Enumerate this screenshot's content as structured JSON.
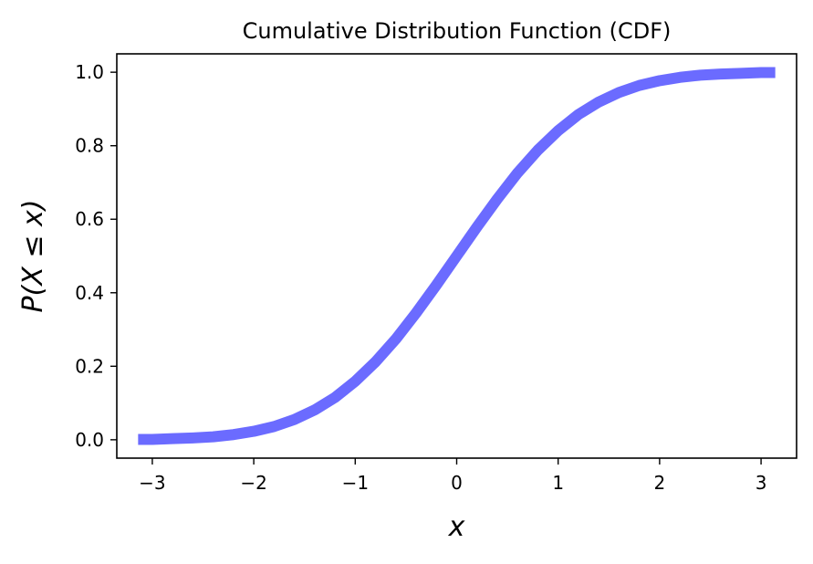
{
  "chart_data": {
    "type": "line",
    "title": "Cumulative Distribution Function (CDF)",
    "xlabel": "x",
    "ylabel": "P(X ≤ x)",
    "xlim": [
      -3.35,
      3.35
    ],
    "ylim": [
      -0.05,
      1.05
    ],
    "x_ticks": [
      -3,
      -2,
      -1,
      0,
      1,
      2,
      3
    ],
    "x_tick_labels": [
      "−3",
      "−2",
      "−1",
      "0",
      "1",
      "2",
      "3"
    ],
    "y_ticks": [
      0.0,
      0.2,
      0.4,
      0.6,
      0.8,
      1.0
    ],
    "y_tick_labels": [
      "0.0",
      "0.2",
      "0.4",
      "0.6",
      "0.8",
      "1.0"
    ],
    "grid": false,
    "legend": "none",
    "series": [
      {
        "color": "#6b6bff",
        "x": [
          -3.14,
          -3.0,
          -2.8,
          -2.6,
          -2.4,
          -2.2,
          -2.0,
          -1.8,
          -1.6,
          -1.4,
          -1.2,
          -1.0,
          -0.8,
          -0.6,
          -0.4,
          -0.2,
          0.0,
          0.2,
          0.4,
          0.6,
          0.8,
          1.0,
          1.2,
          1.4,
          1.6,
          1.8,
          2.0,
          2.2,
          2.4,
          2.6,
          2.8,
          3.0,
          3.14
        ],
        "y": [
          0.001,
          0.001,
          0.003,
          0.005,
          0.008,
          0.014,
          0.023,
          0.036,
          0.055,
          0.081,
          0.115,
          0.159,
          0.212,
          0.274,
          0.345,
          0.421,
          0.5,
          0.579,
          0.655,
          0.726,
          0.788,
          0.841,
          0.885,
          0.919,
          0.945,
          0.964,
          0.977,
          0.986,
          0.992,
          0.995,
          0.997,
          0.999,
          0.999
        ]
      }
    ]
  }
}
